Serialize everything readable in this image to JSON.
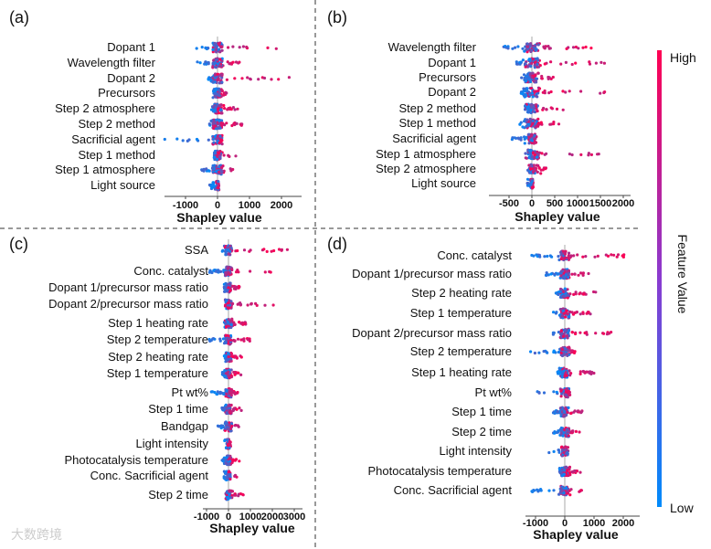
{
  "chart_data": [
    {
      "type": "scatter",
      "subtype": "shap-beeswarm",
      "panel": "(a)",
      "xlabel": "Shapley value",
      "xticks": [
        -1000,
        0,
        1000,
        2000
      ],
      "xtick_labels": [
        "-1000",
        "0",
        "1000",
        "2000"
      ],
      "xlim": [
        -1800,
        2500
      ],
      "features": [
        {
          "name": "Dopant 1",
          "range": [
            -750,
            2000
          ]
        },
        {
          "name": "Wavelength filter",
          "range": [
            -950,
            700
          ]
        },
        {
          "name": "Dopant 2",
          "range": [
            -300,
            2300
          ]
        },
        {
          "name": "Precursors",
          "range": [
            -150,
            400
          ]
        },
        {
          "name": "Step 2 atmosphere",
          "range": [
            -200,
            700
          ]
        },
        {
          "name": "Step 2 method",
          "range": [
            -250,
            900
          ]
        },
        {
          "name": "Sacrificial agent",
          "range": [
            -1700,
            150
          ]
        },
        {
          "name": "Step 1 method",
          "range": [
            -100,
            600
          ]
        },
        {
          "name": "Step 1 atmosphere",
          "range": [
            -500,
            500
          ]
        },
        {
          "name": "Light source",
          "range": [
            -250,
            50
          ]
        }
      ]
    },
    {
      "type": "scatter",
      "subtype": "shap-beeswarm",
      "panel": "(b)",
      "xlabel": "Shapley value",
      "xticks": [
        -500,
        0,
        500,
        1000,
        1500,
        2000
      ],
      "xtick_labels": [
        "-500",
        "0",
        "500",
        "1000",
        "1500",
        "2000"
      ],
      "xlim": [
        -900,
        2150
      ],
      "features": [
        {
          "name": "Wavelength filter",
          "range": [
            -750,
            1850
          ]
        },
        {
          "name": "Dopant 1",
          "range": [
            -400,
            1600
          ]
        },
        {
          "name": "Precursors",
          "range": [
            -250,
            500
          ]
        },
        {
          "name": "Dopant 2",
          "range": [
            -250,
            1950
          ]
        },
        {
          "name": "Step 2 method",
          "range": [
            -150,
            700
          ]
        },
        {
          "name": "Step 1 method",
          "range": [
            -300,
            600
          ]
        },
        {
          "name": "Sacrificial agent",
          "range": [
            -450,
            100
          ]
        },
        {
          "name": "Step 1 atmosphere",
          "range": [
            -100,
            1600
          ]
        },
        {
          "name": "Step 2 atmosphere",
          "range": [
            -100,
            350
          ]
        },
        {
          "name": "Light source",
          "range": [
            -100,
            30
          ]
        }
      ]
    },
    {
      "type": "scatter",
      "subtype": "shap-beeswarm",
      "panel": "(c)",
      "xlabel": "Shapley value",
      "xticks": [
        -1000,
        0,
        1000,
        2000,
        3000
      ],
      "xtick_labels": [
        "-1000",
        "0",
        "1000",
        "2000",
        "3000"
      ],
      "xlim": [
        -1300,
        3300
      ],
      "features": [
        {
          "name": "SSA",
          "range": [
            -400,
            3100
          ]
        },
        {
          "name": "Conc. catalyst",
          "range": [
            -900,
            2600
          ]
        },
        {
          "name": "Dopant 1/precursor mass ratio",
          "range": [
            -200,
            500
          ]
        },
        {
          "name": "Dopant 2/precursor mass ratio",
          "range": [
            -100,
            2300
          ]
        },
        {
          "name": "Step 1 heating rate",
          "range": [
            -200,
            900
          ]
        },
        {
          "name": "Step 2 temperature",
          "range": [
            -900,
            1000
          ]
        },
        {
          "name": "Step 2 heating rate",
          "range": [
            -200,
            600
          ]
        },
        {
          "name": "Step 1 temperature",
          "range": [
            -300,
            600
          ]
        },
        {
          "name": "Pt wt%",
          "range": [
            -800,
            500
          ]
        },
        {
          "name": "Step 1 time",
          "range": [
            -300,
            600
          ]
        },
        {
          "name": "Bandgap",
          "range": [
            -500,
            500
          ]
        },
        {
          "name": "Light intensity",
          "range": [
            -200,
            100
          ]
        },
        {
          "name": "Photocatalysis temperature",
          "range": [
            -300,
            500
          ]
        },
        {
          "name": "Conc. Sacrificial agent",
          "range": [
            -200,
            400
          ]
        },
        {
          "name": "Step 2 time",
          "range": [
            -100,
            700
          ]
        }
      ]
    },
    {
      "type": "scatter",
      "subtype": "shap-beeswarm",
      "panel": "(d)",
      "xlabel": "Shapley value",
      "xticks": [
        -1000,
        0,
        1000,
        2000
      ],
      "xtick_labels": [
        "-1000",
        "0",
        "1000",
        "2000"
      ],
      "xlim": [
        -1500,
        2500
      ],
      "features": [
        {
          "name": "Conc. catalyst",
          "range": [
            -1300,
            2200
          ]
        },
        {
          "name": "Dopant 1/precursor mass ratio",
          "range": [
            -700,
            900
          ]
        },
        {
          "name": "Step 2 heating rate",
          "range": [
            -300,
            1100
          ]
        },
        {
          "name": "Step 1 temperature",
          "range": [
            -400,
            900
          ]
        },
        {
          "name": "Dopant 2/precursor mass ratio",
          "range": [
            -400,
            1800
          ]
        },
        {
          "name": "Step 2 temperature",
          "range": [
            -1200,
            400
          ]
        },
        {
          "name": "Step 1 heating rate",
          "range": [
            -300,
            1000
          ]
        },
        {
          "name": "Pt wt%",
          "range": [
            -1000,
            200
          ]
        },
        {
          "name": "Step 1 time",
          "range": [
            -400,
            700
          ]
        },
        {
          "name": "Step 2 time",
          "range": [
            -400,
            600
          ]
        },
        {
          "name": "Light intensity",
          "range": [
            -700,
            50
          ]
        },
        {
          "name": "Photocatalysis temperature",
          "range": [
            -200,
            600
          ]
        },
        {
          "name": "Conc. Sacrificial agent",
          "range": [
            -1300,
            600
          ]
        }
      ]
    }
  ],
  "colorbar": {
    "title": "Feature Value",
    "high": "High",
    "low": "Low",
    "high_color": "#ff0052",
    "low_color": "#008bfb"
  },
  "watermark": "大数跨境"
}
